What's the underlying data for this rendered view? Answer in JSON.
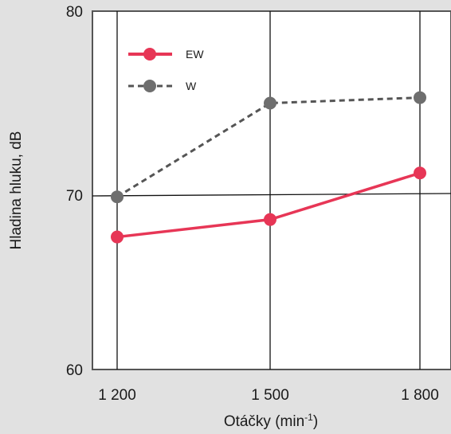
{
  "chart_data": {
    "type": "line",
    "x": [
      1200,
      1500,
      1800
    ],
    "x_tick_labels": [
      "1 200",
      "1 500",
      "1 800"
    ],
    "y_ticks": [
      60,
      70,
      80
    ],
    "ylim": [
      60,
      80
    ],
    "xlabel": "Otáčky (min",
    "xlabel_sup": "-1",
    "xlabel_suffix": ")",
    "ylabel": "Hladina hluku, dB",
    "grid": true,
    "legend_position": "top-left",
    "series": [
      {
        "name": "EW",
        "values": [
          67.6,
          68.6,
          71.2
        ],
        "color": "#e73656",
        "style": "solid"
      },
      {
        "name": "W",
        "values": [
          69.9,
          75.0,
          75.3
        ],
        "color": "#555555",
        "marker_color": "#6e6e6e",
        "style": "dashed"
      }
    ]
  },
  "colors": {
    "plot_background": "#ffffff",
    "page_background": "#e1e1e1",
    "grid": "#111111"
  }
}
